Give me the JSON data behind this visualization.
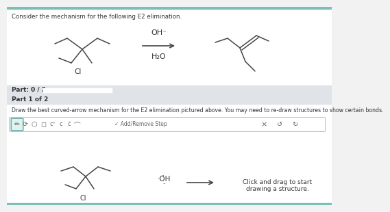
{
  "bg_color": "#f2f2f2",
  "white": "#ffffff",
  "light_gray": "#e0e4e8",
  "medium_gray": "#c8cdd4",
  "dark_gray": "#b0b5bc",
  "teal_bar": "#7bbfb5",
  "text_color": "#333333",
  "title_text": "Consider the mechanism for the following E2 elimination.",
  "part_text": "Part: 0 / 2",
  "part1_text": "Part 1 of 2",
  "instruction_text": "Draw the best curved-arrow mechanism for the E2 elimination pictured above. You may need to re-draw structures to show certain bonds.",
  "oh_reagent": "OH⁻",
  "h2o_reagent": "H₂O",
  "click_drag_text": "Click and drag to start\ndrawing a structure.",
  "add_remove_text": "✓ Add/Remove Step"
}
